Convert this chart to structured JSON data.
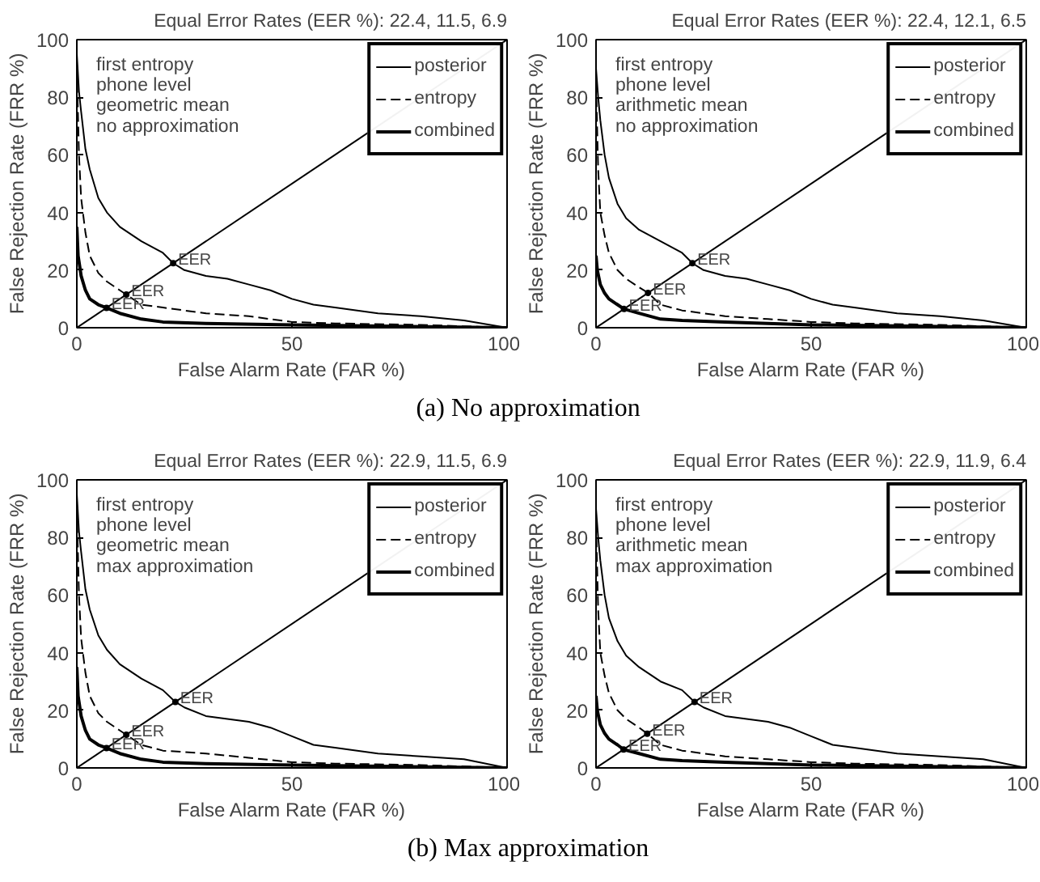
{
  "chart_data": [
    {
      "type": "line",
      "title": "Equal Error Rates (EER %): 22.4, 11.5, 6.9",
      "xlabel": "False Alarm Rate (FAR %)",
      "ylabel": "False Rejection Rate (FRR %)",
      "xlim": [
        0,
        100
      ],
      "ylim": [
        0,
        100
      ],
      "xticks": [
        0,
        50,
        100
      ],
      "yticks": [
        0,
        20,
        40,
        60,
        80,
        100
      ],
      "grid": false,
      "legend": "top right",
      "annotations": [
        "first entropy\nphone level\ngeometric mean\nno approximation",
        "(a) No approximation",
        {
          "text": "EER",
          "x": 22.4,
          "y": 22.4
        },
        {
          "text": "EER",
          "x": 11.5,
          "y": 11.5
        },
        {
          "text": "EER",
          "x": 6.9,
          "y": 6.9
        }
      ],
      "series": [
        {
          "name": "posterior",
          "color": "#000000",
          "line_style": "solid",
          "x": [
            0,
            0.5,
            1,
            2,
            3,
            5,
            7,
            10,
            15,
            20,
            22.4,
            25,
            30,
            35,
            40,
            45,
            50,
            55,
            60,
            70,
            80,
            90,
            100
          ],
          "values": [
            95,
            82,
            75,
            62,
            55,
            45,
            40,
            35,
            30,
            26,
            22.4,
            20,
            18,
            17,
            15,
            13,
            10,
            8,
            7,
            5,
            4,
            2.5,
            0
          ]
        },
        {
          "name": "entropy",
          "color": "#000000",
          "line_style": "dashed",
          "x": [
            0,
            0.5,
            1,
            2,
            3,
            5,
            7,
            10,
            11.5,
            15,
            20,
            25,
            30,
            40,
            50,
            60,
            80,
            100
          ],
          "values": [
            90,
            60,
            45,
            33,
            25,
            19,
            16,
            13,
            11.5,
            8,
            7,
            6,
            5,
            4,
            2,
            1.5,
            1,
            0
          ]
        },
        {
          "name": "combined",
          "color": "#000000",
          "line_style": "solid",
          "x": [
            0,
            0.3,
            1,
            2,
            3,
            5,
            6.9,
            10,
            15,
            20,
            30,
            50,
            100
          ],
          "values": [
            35,
            25,
            18,
            13,
            10,
            8,
            6.9,
            5,
            3,
            2,
            1.5,
            1,
            0
          ]
        },
        {
          "color": "#000000",
          "line_style": "solid",
          "x": [
            0,
            100
          ],
          "values": [
            0,
            100
          ]
        }
      ]
    },
    {
      "type": "line",
      "title": "Equal Error Rates (EER %): 22.4, 12.1, 6.5",
      "xlabel": "False Alarm Rate (FAR %)",
      "ylabel": "False Rejection Rate (FRR %)",
      "xlim": [
        0,
        100
      ],
      "ylim": [
        0,
        100
      ],
      "xticks": [
        0,
        50,
        100
      ],
      "yticks": [
        0,
        20,
        40,
        60,
        80,
        100
      ],
      "grid": false,
      "legend": "top right",
      "annotations": [
        "first entropy\nphone level\narithmetic mean\nno approximation",
        {
          "text": "EER",
          "x": 22.4,
          "y": 22.4
        },
        {
          "text": "EER",
          "x": 12.1,
          "y": 12.1
        },
        {
          "text": "EER",
          "x": 6.5,
          "y": 6.5
        }
      ],
      "series": [
        {
          "name": "posterior",
          "color": "#000000",
          "line_style": "solid",
          "x": [
            0,
            0.5,
            1,
            2,
            3,
            5,
            7,
            10,
            15,
            20,
            22.4,
            25,
            30,
            35,
            40,
            45,
            50,
            55,
            60,
            70,
            80,
            90,
            100
          ],
          "values": [
            90,
            80,
            72,
            60,
            52,
            43,
            38,
            34,
            30,
            26,
            22.4,
            20,
            18,
            17,
            15,
            13,
            10,
            8,
            7,
            5,
            4,
            2.5,
            0
          ]
        },
        {
          "name": "entropy",
          "color": "#000000",
          "line_style": "dashed",
          "x": [
            0,
            0.5,
            1,
            2,
            3,
            5,
            7,
            10,
            12.1,
            15,
            20,
            25,
            30,
            40,
            50,
            60,
            80,
            100
          ],
          "values": [
            85,
            55,
            40,
            32,
            26,
            20,
            17,
            14,
            12.1,
            8,
            6,
            5,
            4,
            3,
            2,
            1.5,
            1,
            0
          ]
        },
        {
          "name": "combined",
          "color": "#000000",
          "line_style": "solid",
          "x": [
            0,
            0.3,
            1,
            2,
            3,
            5,
            6.5,
            10,
            15,
            20,
            30,
            50,
            100
          ],
          "values": [
            25,
            20,
            15,
            12,
            10,
            8,
            6.5,
            5,
            3,
            2.5,
            2,
            1,
            0
          ]
        },
        {
          "color": "#000000",
          "line_style": "solid",
          "x": [
            0,
            100
          ],
          "values": [
            0,
            100
          ]
        }
      ]
    },
    {
      "type": "line",
      "title": "Equal Error Rates (EER %): 22.9, 11.5, 6.9",
      "xlabel": "False Alarm Rate (FAR %)",
      "ylabel": "False Rejection Rate (FRR %)",
      "xlim": [
        0,
        100
      ],
      "ylim": [
        0,
        100
      ],
      "xticks": [
        0,
        50,
        100
      ],
      "yticks": [
        0,
        20,
        40,
        60,
        80,
        100
      ],
      "grid": false,
      "legend": "top right",
      "annotations": [
        "first entropy\nphone level\ngeometric mean\nmax approximation",
        "(b) Max approximation",
        {
          "text": "EER",
          "x": 22.9,
          "y": 22.9
        },
        {
          "text": "EER",
          "x": 11.5,
          "y": 11.5
        },
        {
          "text": "EER",
          "x": 6.9,
          "y": 6.9
        }
      ],
      "series": [
        {
          "name": "posterior",
          "color": "#000000",
          "line_style": "solid",
          "x": [
            0,
            0.5,
            1,
            2,
            3,
            5,
            7,
            10,
            15,
            20,
            22.9,
            25,
            30,
            35,
            40,
            45,
            50,
            55,
            60,
            70,
            80,
            90,
            100
          ],
          "values": [
            95,
            82,
            75,
            62,
            55,
            46,
            41,
            36,
            31,
            27,
            22.9,
            21,
            18,
            17,
            16,
            14,
            11,
            8,
            7,
            5,
            4,
            3,
            0
          ]
        },
        {
          "name": "entropy",
          "color": "#000000",
          "line_style": "dashed",
          "x": [
            0,
            0.5,
            1,
            2,
            3,
            5,
            7,
            10,
            11.5,
            15,
            20,
            25,
            30,
            40,
            50,
            60,
            80,
            100
          ],
          "values": [
            90,
            60,
            45,
            33,
            25,
            19,
            16,
            13,
            11.5,
            8,
            6,
            5.5,
            5,
            3.5,
            2,
            1.5,
            1,
            0
          ]
        },
        {
          "name": "combined",
          "color": "#000000",
          "line_style": "solid",
          "x": [
            0,
            0.3,
            1,
            2,
            3,
            5,
            6.9,
            10,
            15,
            20,
            30,
            50,
            100
          ],
          "values": [
            35,
            25,
            18,
            13,
            10,
            8,
            6.9,
            5,
            3,
            2,
            1.5,
            1,
            0
          ]
        },
        {
          "color": "#000000",
          "line_style": "solid",
          "x": [
            0,
            100
          ],
          "values": [
            0,
            100
          ]
        }
      ]
    },
    {
      "type": "line",
      "title": "Equal Error Rates (EER %): 22.9, 11.9, 6.4",
      "xlabel": "False Alarm Rate (FAR %)",
      "ylabel": "False Rejection Rate (FRR %)",
      "xlim": [
        0,
        100
      ],
      "ylim": [
        0,
        100
      ],
      "xticks": [
        0,
        50,
        100
      ],
      "yticks": [
        0,
        20,
        40,
        60,
        80,
        100
      ],
      "grid": false,
      "legend": "top right",
      "annotations": [
        "first entropy\nphone level\narithmetic mean\nmax approximation",
        {
          "text": "EER",
          "x": 22.9,
          "y": 22.9
        },
        {
          "text": "EER",
          "x": 11.9,
          "y": 11.9
        },
        {
          "text": "EER",
          "x": 6.4,
          "y": 6.4
        }
      ],
      "series": [
        {
          "name": "posterior",
          "color": "#000000",
          "line_style": "solid",
          "x": [
            0,
            0.5,
            1,
            2,
            3,
            5,
            7,
            10,
            15,
            20,
            22.9,
            25,
            30,
            35,
            40,
            45,
            50,
            55,
            60,
            70,
            80,
            90,
            100
          ],
          "values": [
            90,
            80,
            72,
            60,
            52,
            44,
            39,
            35,
            30,
            27,
            22.9,
            21,
            18,
            17,
            16,
            14,
            11,
            8,
            7,
            5,
            4,
            3,
            0
          ]
        },
        {
          "name": "entropy",
          "color": "#000000",
          "line_style": "dashed",
          "x": [
            0,
            0.5,
            1,
            2,
            3,
            5,
            7,
            10,
            11.9,
            15,
            20,
            25,
            30,
            40,
            50,
            60,
            80,
            100
          ],
          "values": [
            85,
            55,
            40,
            32,
            26,
            20,
            17,
            14,
            11.9,
            8,
            6,
            5,
            4,
            3,
            2,
            1.5,
            1,
            0
          ]
        },
        {
          "name": "combined",
          "color": "#000000",
          "line_style": "solid",
          "x": [
            0,
            0.3,
            1,
            2,
            3,
            5,
            6.4,
            10,
            15,
            20,
            30,
            50,
            100
          ],
          "values": [
            25,
            20,
            15,
            12,
            10,
            8,
            6.4,
            5,
            3,
            2.5,
            2,
            1,
            0
          ]
        },
        {
          "color": "#000000",
          "line_style": "solid",
          "x": [
            0,
            100
          ],
          "values": [
            0,
            100
          ]
        }
      ]
    }
  ]
}
